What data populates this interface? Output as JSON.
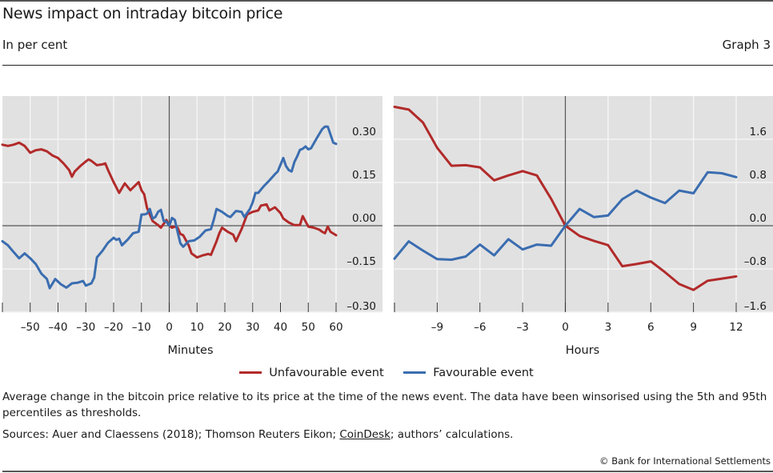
{
  "header": {
    "title": "News impact on intraday bitcoin price",
    "subtitle": "In per cent",
    "graph_number": "Graph 3"
  },
  "legend": [
    {
      "label": "Unfavourable event",
      "color": "#b22a2a"
    },
    {
      "label": "Favourable event",
      "color": "#3a6db0"
    }
  ],
  "footer": {
    "note": "Average change in the bitcoin price relative to its price at the time of the news event. The data have been winsorised using the 5th and 95th percentiles as thresholds.",
    "sources_prefix": "Sources: Auer and Claessens (2018); Thomson Reuters Eikon; ",
    "sources_link": "CoinDesk",
    "sources_suffix": "; authors’ calculations.",
    "copyright": "© Bank for International Settlements"
  },
  "chart_data": [
    {
      "type": "line",
      "title": "",
      "xlabel": "Minutes",
      "ylabel": "",
      "xlim": [
        -60,
        60
      ],
      "ylim": [
        -0.3,
        0.3
      ],
      "x_ticks": [
        -60,
        -50,
        -40,
        -30,
        -20,
        -10,
        0,
        10,
        20,
        30,
        40,
        50,
        60
      ],
      "x_tick_labels": [
        "–50",
        "–40",
        "–30",
        "–20",
        "–10",
        "0",
        "10",
        "20",
        "30",
        "40",
        "50",
        "60"
      ],
      "x_tick_label_values": [
        -50,
        -40,
        -30,
        -20,
        -10,
        0,
        10,
        20,
        30,
        40,
        50,
        60
      ],
      "y_ticks": [
        0.3,
        0.15,
        0.0,
        -0.15,
        -0.3
      ],
      "y_tick_labels": [
        "0.30",
        "0.15",
        "0.00",
        "–0.15",
        "–0.30"
      ],
      "y_axis_side": "right",
      "grid": true,
      "series": [
        {
          "name": "Unfavourable event",
          "color": "#b22a2a",
          "x": [
            -60,
            -58,
            -56,
            -54,
            -52,
            -50,
            -48,
            -46,
            -44,
            -42,
            -40,
            -38,
            -36,
            -35,
            -34,
            -32,
            -30,
            -29,
            -28,
            -26,
            -24,
            -23,
            -22,
            -20,
            -18,
            -16,
            -14,
            -12,
            -11,
            -10,
            -9,
            -8,
            -6,
            -4,
            -3,
            -1,
            0,
            1,
            2,
            3,
            4,
            5,
            7,
            8,
            10,
            12,
            14,
            15,
            17,
            18,
            19,
            21,
            23,
            24,
            26,
            28,
            30,
            32,
            33,
            35,
            36,
            38,
            40,
            41,
            43,
            45,
            47,
            48,
            50,
            52,
            54,
            55,
            56,
            57,
            58,
            60
          ],
          "values": [
            0.281,
            0.277,
            0.281,
            0.288,
            0.277,
            0.253,
            0.262,
            0.265,
            0.258,
            0.244,
            0.235,
            0.216,
            0.193,
            0.17,
            0.188,
            0.207,
            0.223,
            0.23,
            0.225,
            0.21,
            0.213,
            0.216,
            0.193,
            0.151,
            0.114,
            0.147,
            0.123,
            0.142,
            0.151,
            0.123,
            0.109,
            0.062,
            0.016,
            0.002,
            -0.007,
            0.02,
            0.0,
            -0.007,
            -0.003,
            -0.007,
            -0.029,
            -0.033,
            -0.068,
            -0.096,
            -0.11,
            -0.103,
            -0.098,
            -0.101,
            -0.054,
            -0.026,
            -0.007,
            -0.021,
            -0.031,
            -0.054,
            -0.012,
            0.039,
            0.048,
            0.053,
            0.07,
            0.074,
            0.053,
            0.064,
            0.044,
            0.025,
            0.011,
            0.002,
            0.002,
            0.033,
            -0.003,
            -0.007,
            -0.014,
            -0.021,
            -0.026,
            -0.003,
            -0.021,
            -0.033
          ]
        },
        {
          "name": "Favourable event",
          "color": "#3a6db0",
          "x": [
            -60,
            -58,
            -56,
            -54,
            -52,
            -50,
            -48,
            -46,
            -44,
            -43,
            -41,
            -39,
            -37,
            -35,
            -33,
            -31,
            -30,
            -28,
            -27,
            -26,
            -24,
            -22,
            -20,
            -19,
            -18,
            -17,
            -15,
            -13,
            -11,
            -10,
            -9,
            -8,
            -7,
            -6,
            -5,
            -4,
            -3,
            -2,
            -1,
            0,
            1,
            2,
            3,
            4,
            5,
            7,
            9,
            11,
            13,
            15,
            16,
            17,
            19,
            21,
            22,
            24,
            26,
            27,
            29,
            30,
            31,
            32,
            34,
            36,
            38,
            39,
            40,
            41,
            42,
            43,
            44,
            45,
            46,
            47,
            48,
            49,
            50,
            51,
            53,
            55,
            56,
            57,
            59,
            60
          ],
          "values": [
            -0.054,
            -0.068,
            -0.091,
            -0.113,
            -0.096,
            -0.113,
            -0.133,
            -0.166,
            -0.185,
            -0.217,
            -0.185,
            -0.203,
            -0.215,
            -0.2,
            -0.198,
            -0.192,
            -0.208,
            -0.2,
            -0.18,
            -0.11,
            -0.087,
            -0.059,
            -0.042,
            -0.049,
            -0.045,
            -0.068,
            -0.049,
            -0.026,
            -0.021,
            0.039,
            0.039,
            0.042,
            0.058,
            0.025,
            0.03,
            0.048,
            0.055,
            0.016,
            0.014,
            0.0,
            0.027,
            0.02,
            -0.021,
            -0.061,
            -0.073,
            -0.054,
            -0.051,
            -0.038,
            -0.017,
            -0.012,
            0.02,
            0.058,
            0.048,
            0.034,
            0.03,
            0.051,
            0.048,
            0.03,
            0.058,
            0.081,
            0.114,
            0.114,
            0.137,
            0.157,
            0.179,
            0.188,
            0.211,
            0.235,
            0.207,
            0.193,
            0.188,
            0.221,
            0.24,
            0.263,
            0.267,
            0.275,
            0.265,
            0.269,
            0.303,
            0.335,
            0.344,
            0.344,
            0.288,
            0.284
          ]
        }
      ]
    },
    {
      "type": "line",
      "title": "",
      "xlabel": "Hours",
      "ylabel": "",
      "xlim": [
        -12,
        12
      ],
      "ylim": [
        -1.6,
        1.6
      ],
      "x_ticks": [
        -12,
        -9,
        -6,
        -3,
        0,
        3,
        6,
        9,
        12
      ],
      "x_tick_labels": [
        "–9",
        "–6",
        "–3",
        "0",
        "3",
        "6",
        "9",
        "12"
      ],
      "x_tick_label_values": [
        -9,
        -6,
        -3,
        0,
        3,
        6,
        9,
        12
      ],
      "y_ticks": [
        1.6,
        0.8,
        0.0,
        -0.8,
        -1.6
      ],
      "y_tick_labels": [
        "1.6",
        "0.8",
        "0.0",
        "–0.8",
        "–1.6"
      ],
      "y_axis_side": "right",
      "grid": true,
      "series": [
        {
          "name": "Unfavourable event",
          "color": "#b22a2a",
          "x": [
            -12,
            -11,
            -10,
            -9,
            -8,
            -7,
            -6,
            -5,
            -4,
            -3,
            -2,
            -1,
            0,
            1,
            2,
            3,
            4,
            5,
            6,
            7,
            8,
            9,
            10,
            11,
            12
          ],
          "values": [
            2.2,
            2.15,
            1.91,
            1.44,
            1.11,
            1.12,
            1.08,
            0.84,
            0.93,
            1.01,
            0.93,
            0.5,
            0.0,
            -0.19,
            -0.28,
            -0.36,
            -0.75,
            -0.71,
            -0.66,
            -0.86,
            -1.08,
            -1.19,
            -1.02,
            -0.98,
            -0.94
          ]
        },
        {
          "name": "Favourable event",
          "color": "#3a6db0",
          "x": [
            -12,
            -11,
            -10,
            -9,
            -8,
            -7,
            -6,
            -5,
            -4,
            -3,
            -2,
            -1,
            0,
            1,
            2,
            3,
            4,
            5,
            6,
            7,
            8,
            9,
            10,
            11,
            12
          ],
          "values": [
            -0.61,
            -0.29,
            -0.46,
            -0.62,
            -0.63,
            -0.57,
            -0.35,
            -0.55,
            -0.25,
            -0.44,
            -0.35,
            -0.37,
            0.0,
            0.31,
            0.16,
            0.19,
            0.49,
            0.65,
            0.52,
            0.42,
            0.65,
            0.6,
            0.99,
            0.97,
            0.9
          ]
        }
      ]
    }
  ]
}
